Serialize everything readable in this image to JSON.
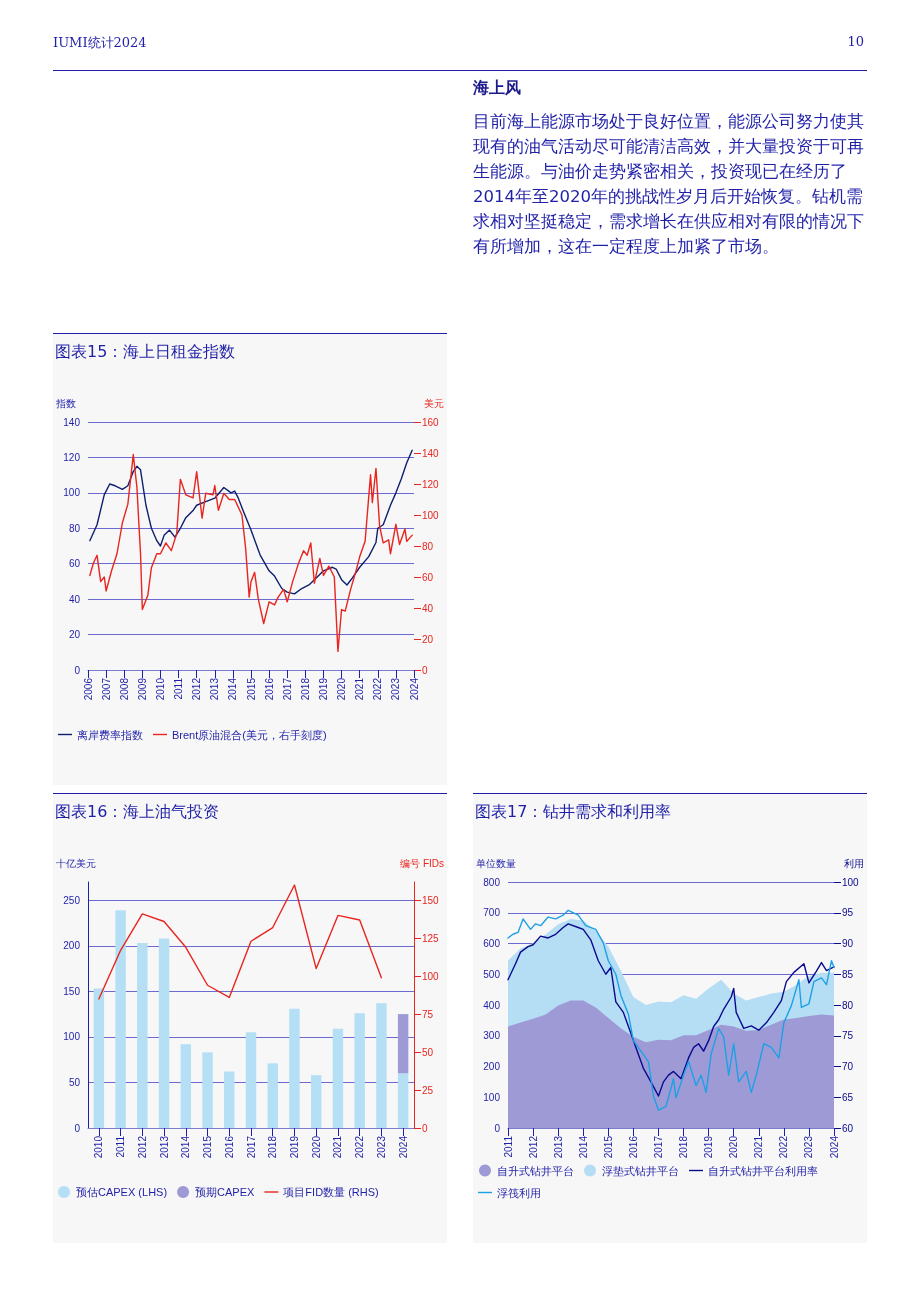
{
  "chart_data": [
    {
      "type": "other",
      "title": "海上风",
      "annotations": [
        "IUMI统计2024",
        "10",
        "目前海上能源市场处于良好位置，能源公司努力使其现有的油气活动尽可能清洁高效，并大量投资于可再生能源。与油价走势紧密相关，投资现已在经历了2014年至2020年的挑战性岁月后开始恢复。钻机需求相对坚挺稳定，需求增长在供应相对有限的情况下有所增加，这在一定程度上加紧了市场。"
      ]
    },
    {
      "type": "line",
      "title": "图表15：海上日租金指数",
      "ylabel": "指数",
      "y2label": "美元",
      "xlim": [
        2006,
        2024
      ],
      "xticks": [
        2006,
        2007,
        2008,
        2009,
        2010,
        2011,
        2012,
        2013,
        2014,
        2015,
        2016,
        2017,
        2018,
        2019,
        2020,
        2021,
        2022,
        2023,
        2024
      ],
      "ylim": [
        0,
        140
      ],
      "yticks": [
        0,
        20,
        40,
        60,
        80,
        100,
        120,
        140
      ],
      "y2lim": [
        0,
        160
      ],
      "y2ticks": [
        0,
        20,
        40,
        60,
        80,
        100,
        120,
        140,
        160
      ],
      "grid": "y",
      "legend": "bottom",
      "marker": "none",
      "line_style": "solid",
      "series": [
        {
          "name": "离岸费率指数",
          "color": "#0d1f6e",
          "x": [
            2006.1,
            2006.5,
            2006.9,
            2007.0,
            2007.2,
            2007.5,
            2007.9,
            2008.2,
            2008.5,
            2008.7,
            2008.9,
            2009.2,
            2009.5,
            2009.8,
            2010.0,
            2010.2,
            2010.5,
            2010.8,
            2011.1,
            2011.4,
            2011.8,
            2012.0,
            2012.5,
            2013.0,
            2013.5,
            2013.9,
            2014.1,
            2014.3,
            2014.6,
            2015.0,
            2015.5,
            2016.0,
            2016.3,
            2016.7,
            2017.0,
            2017.4,
            2017.8,
            2018.2,
            2018.6,
            2019.0,
            2019.5,
            2019.7,
            2020.0,
            2020.3,
            2020.6,
            2021.0,
            2021.5,
            2021.9,
            2022.0,
            2022.3,
            2022.7,
            2023.0,
            2023.3,
            2023.6,
            2023.9
          ],
          "values": [
            73,
            82,
            99,
            101,
            105,
            104,
            102,
            104,
            112,
            115,
            113,
            93,
            80,
            73,
            70,
            76,
            79,
            75,
            80,
            86,
            90,
            93,
            95,
            97,
            103,
            100,
            101,
            97,
            89,
            79,
            65,
            56,
            53,
            46,
            44,
            43,
            46,
            48,
            52,
            56,
            58,
            57,
            51,
            48,
            52,
            58,
            64,
            72,
            80,
            82,
            93,
            100,
            108,
            117,
            124
          ]
        },
        {
          "name": "Brent原油混合(美元，右手刻度)",
          "color": "#e8251f",
          "axis": "y2",
          "x": [
            2006.1,
            2006.3,
            2006.5,
            2006.7,
            2006.9,
            2007.0,
            2007.3,
            2007.6,
            2007.9,
            2008.2,
            2008.5,
            2008.7,
            2008.9,
            2009.0,
            2009.3,
            2009.5,
            2009.8,
            2010.0,
            2010.3,
            2010.6,
            2010.9,
            2011.1,
            2011.4,
            2011.8,
            2012.0,
            2012.3,
            2012.5,
            2012.9,
            2013.0,
            2013.2,
            2013.5,
            2013.8,
            2014.1,
            2014.5,
            2014.7,
            2014.9,
            2015.0,
            2015.2,
            2015.4,
            2015.7,
            2016.0,
            2016.3,
            2016.5,
            2016.8,
            2017.0,
            2017.3,
            2017.6,
            2017.9,
            2018.1,
            2018.3,
            2018.5,
            2018.8,
            2019.0,
            2019.3,
            2019.6,
            2019.8,
            2020.0,
            2020.2,
            2020.5,
            2020.8,
            2021.0,
            2021.3,
            2021.6,
            2021.7,
            2021.9,
            2022.1,
            2022.3,
            2022.6,
            2022.7,
            2023.0,
            2023.2,
            2023.5,
            2023.6,
            2023.9
          ],
          "values": [
            61,
            69,
            74,
            57,
            60,
            51,
            64,
            75,
            95,
            107,
            139,
            118,
            75,
            39,
            48,
            66,
            75,
            75,
            82,
            77,
            88,
            123,
            113,
            111,
            128,
            98,
            114,
            113,
            119,
            103,
            114,
            110,
            110,
            100,
            79,
            47,
            57,
            63,
            46,
            30,
            44,
            42,
            47,
            52,
            44,
            57,
            68,
            77,
            74,
            82,
            56,
            72,
            61,
            67,
            60,
            12,
            39,
            38,
            52,
            64,
            73,
            83,
            126,
            108,
            130,
            93,
            82,
            84,
            75,
            94,
            81,
            91,
            83,
            87
          ]
        }
      ]
    },
    {
      "type": "bar",
      "title": "图表16：海上油气投资",
      "ylabel": "十亿美元",
      "y2label": "编号 FIDs",
      "categories": [
        "2010",
        "2011",
        "2012",
        "2013",
        "2014",
        "2015",
        "2016",
        "2017",
        "2018",
        "2019",
        "2020",
        "2021",
        "2022",
        "2023",
        "2024"
      ],
      "ylim": [
        0,
        270
      ],
      "yticks": [
        0,
        50,
        100,
        150,
        200,
        250
      ],
      "y2lim": [
        0,
        162
      ],
      "y2ticks": [
        0,
        25,
        50,
        75,
        100,
        125,
        150
      ],
      "stacked": true,
      "grid": "y",
      "legend": "bottom",
      "marker": "none",
      "line_style": "solid",
      "series": [
        {
          "name": "预估CAPEX (LHS)",
          "color": "#b5dff5",
          "values": [
            153,
            239,
            203,
            208,
            92,
            83,
            62,
            105,
            71,
            131,
            58,
            109,
            126,
            137,
            60
          ]
        },
        {
          "name": "预期CAPEX",
          "color": "#9d9ad6",
          "values": [
            null,
            null,
            null,
            null,
            null,
            null,
            null,
            null,
            null,
            null,
            null,
            null,
            null,
            null,
            65
          ]
        },
        {
          "name": "项目FID数量 (RHS)",
          "type": "line",
          "axis": "y2",
          "color": "#e8251f",
          "values": [
            85,
            117,
            141,
            136,
            119,
            94,
            86,
            123,
            132,
            160,
            105,
            140,
            137,
            99,
            null
          ]
        }
      ]
    },
    {
      "type": "area",
      "title": "图表17：钻井需求和利用率",
      "ylabel": "单位数量",
      "y2label": "利用",
      "xlim": [
        2011,
        2024
      ],
      "xticks": [
        2011,
        2012,
        2013,
        2014,
        2015,
        2016,
        2017,
        2018,
        2019,
        2020,
        2021,
        2022,
        2023,
        2024
      ],
      "ylim": [
        0,
        800
      ],
      "yticks": [
        0,
        100,
        200,
        300,
        400,
        500,
        600,
        700,
        800
      ],
      "y2lim": [
        60,
        100
      ],
      "y2ticks": [
        60,
        65,
        70,
        75,
        80,
        85,
        90,
        95,
        100
      ],
      "stacked": true,
      "grid": "y",
      "legend": "bottom",
      "marker": "none",
      "line_style": "solid",
      "series": [
        {
          "name": "自升式钻井平台",
          "color": "#9d9ad6",
          "x": [
            2011,
            2011.5,
            2012,
            2012.5,
            2013,
            2013.5,
            2014,
            2014.5,
            2015,
            2015.5,
            2016,
            2016.5,
            2017,
            2017.5,
            2018,
            2018.5,
            2019,
            2019.5,
            2020,
            2020.5,
            2021,
            2021.5,
            2022,
            2022.5,
            2023,
            2023.5,
            2024
          ],
          "values": [
            330,
            343,
            355,
            369,
            398,
            415,
            415,
            392,
            358,
            324,
            296,
            279,
            287,
            285,
            302,
            302,
            319,
            336,
            330,
            316,
            319,
            336,
            353,
            358,
            364,
            369,
            366
          ]
        },
        {
          "name": "浮垫式钻井平台",
          "color": "#b5def4",
          "x": [
            2011,
            2011.5,
            2012,
            2012.5,
            2013,
            2013.5,
            2014,
            2014.5,
            2015,
            2015.5,
            2016,
            2016.5,
            2017,
            2017.5,
            2018,
            2018.5,
            2019,
            2019.5,
            2020,
            2020.5,
            2021,
            2021.5,
            2022,
            2022.5,
            2023,
            2023.5,
            2024
          ],
          "values": [
            215,
            241,
            246,
            260,
            265,
            265,
            260,
            249,
            232,
            187,
            130,
            121,
            124,
            124,
            130,
            118,
            135,
            146,
            107,
            99,
            107,
            101,
            90,
            108,
            130,
            136,
            139
          ]
        },
        {
          "name": "自升式钻井平台利用率",
          "type": "line",
          "axis": "y2",
          "color": "#0a0a8f",
          "x": [
            2011.0,
            2011.3,
            2011.5,
            2011.8,
            2012.0,
            2012.3,
            2012.6,
            2012.9,
            2013.2,
            2013.4,
            2013.8,
            2014.0,
            2014.3,
            2014.6,
            2014.9,
            2015.1,
            2015.3,
            2015.6,
            2015.9,
            2016.1,
            2016.4,
            2016.7,
            2017.0,
            2017.2,
            2017.4,
            2017.6,
            2017.9,
            2018.2,
            2018.4,
            2018.6,
            2018.8,
            2019.0,
            2019.2,
            2019.4,
            2019.6,
            2019.9,
            2020.0,
            2020.1,
            2020.4,
            2020.7,
            2021.0,
            2021.3,
            2021.6,
            2021.9,
            2022.1,
            2022.4,
            2022.8,
            2023.0,
            2023.3,
            2023.5,
            2023.7,
            2024.0
          ],
          "values": [
            84.1,
            86.7,
            88.6,
            89.5,
            89.8,
            91.2,
            90.9,
            91.5,
            92.6,
            93.2,
            92.6,
            92.3,
            90.6,
            87.2,
            85.0,
            86.1,
            80.5,
            78.8,
            75.4,
            73.1,
            69.7,
            67.5,
            65.2,
            67.5,
            68.6,
            69.2,
            68.0,
            71.4,
            73.1,
            73.7,
            72.5,
            74.2,
            76.5,
            77.6,
            79.3,
            81.3,
            82.7,
            78.8,
            76.2,
            76.6,
            75.9,
            77.1,
            78.8,
            80.7,
            83.8,
            85.3,
            86.7,
            83.6,
            85.5,
            86.9,
            85.6,
            86.2
          ]
        },
        {
          "name": "浮筏利用",
          "type": "line",
          "axis": "y2",
          "color": "#1ea0e6",
          "x": [
            2011.0,
            2011.2,
            2011.4,
            2011.6,
            2011.9,
            2012.1,
            2012.3,
            2012.6,
            2012.9,
            2013.2,
            2013.4,
            2013.8,
            2014.1,
            2014.5,
            2014.8,
            2015.0,
            2015.3,
            2015.5,
            2015.8,
            2016.0,
            2016.3,
            2016.6,
            2016.8,
            2017.0,
            2017.3,
            2017.6,
            2017.7,
            2018.0,
            2018.2,
            2018.5,
            2018.7,
            2018.9,
            2019.1,
            2019.4,
            2019.6,
            2019.8,
            2020.0,
            2020.2,
            2020.5,
            2020.7,
            2020.9,
            2021.2,
            2021.5,
            2021.8,
            2022.0,
            2022.3,
            2022.6,
            2022.7,
            2023.0,
            2023.2,
            2023.5,
            2023.7,
            2023.9,
            2024.0
          ],
          "values": [
            90.9,
            91.5,
            91.8,
            94.0,
            92.3,
            93.2,
            92.9,
            94.3,
            94.0,
            94.6,
            95.4,
            94.6,
            92.9,
            92.3,
            90.1,
            87.2,
            85.0,
            81.6,
            78.5,
            74.2,
            72.5,
            70.8,
            65.2,
            62.9,
            63.5,
            68.0,
            64.9,
            68.6,
            70.8,
            66.9,
            68.6,
            65.8,
            72.0,
            76.2,
            74.8,
            68.6,
            73.7,
            67.5,
            69.2,
            65.8,
            68.6,
            73.7,
            73.1,
            71.4,
            77.1,
            79.9,
            84.1,
            79.6,
            80.2,
            83.8,
            84.4,
            83.3,
            87.2,
            86.1
          ]
        }
      ]
    }
  ]
}
